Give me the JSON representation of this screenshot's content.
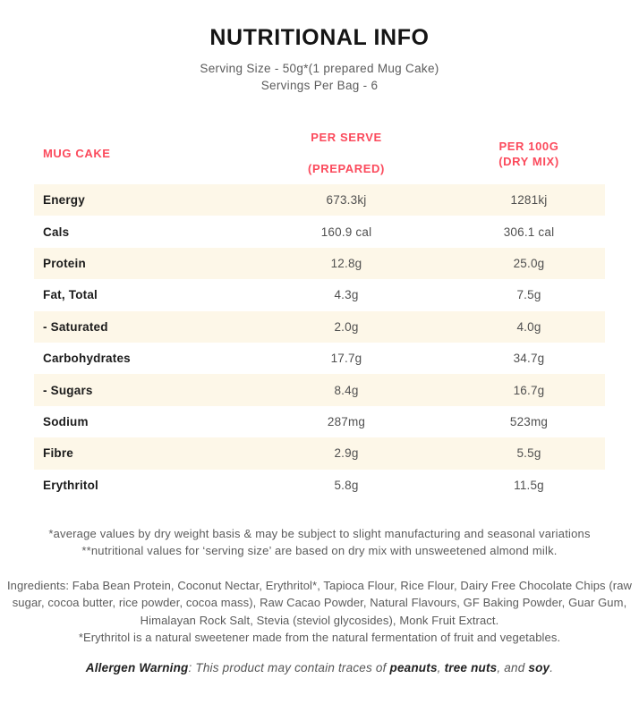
{
  "header": {
    "title": "NUTRITIONAL INFO",
    "serving_size": "Serving Size - 50g*(1 prepared Mug Cake)",
    "servings_per_bag": "Servings Per Bag - 6"
  },
  "table": {
    "header": {
      "product": "MUG CAKE",
      "per_serve_line1": "PER SERVE",
      "per_serve_line2": "(PREPARED)",
      "per_100g_line1": "PER 100G",
      "per_100g_line2": "(DRY MIX)"
    },
    "rows": [
      {
        "label": "Energy",
        "per_serve": "673.3kj",
        "per_100g": "1281kj"
      },
      {
        "label": "Cals",
        "per_serve": "160.9 cal",
        "per_100g": "306.1 cal"
      },
      {
        "label": "Protein",
        "per_serve": "12.8g",
        "per_100g": "25.0g"
      },
      {
        "label": "Fat, Total",
        "per_serve": "4.3g",
        "per_100g": "7.5g"
      },
      {
        "label": "- Saturated",
        "per_serve": "2.0g",
        "per_100g": "4.0g"
      },
      {
        "label": "Carbohydrates",
        "per_serve": "17.7g",
        "per_100g": "34.7g"
      },
      {
        "label": "- Sugars",
        "per_serve": "8.4g",
        "per_100g": "16.7g"
      },
      {
        "label": "Sodium",
        "per_serve": "287mg",
        "per_100g": "523mg"
      },
      {
        "label": "Fibre",
        "per_serve": "2.9g",
        "per_100g": "5.5g"
      },
      {
        "label": "Erythritol",
        "per_serve": "5.8g",
        "per_100g": "11.5g"
      }
    ]
  },
  "footnotes": {
    "line1": "*average values by dry weight basis & may be subject to slight manufacturing and seasonal variations",
    "line2": "**nutritional values for ‘serving size’ are based on dry mix with unsweetened almond milk."
  },
  "ingredients": {
    "text": "Ingredients: Faba Bean Protein, Coconut Nectar, Erythritol*, Tapioca Flour, Rice Flour, Dairy Free Chocolate Chips (raw sugar, cocoa butter, rice powder, cocoa mass), Raw Cacao Powder, Natural Flavours, GF Baking Powder, Guar Gum, Himalayan Rock Salt, Stevia (steviol glycosides), Monk Fruit Extract.",
    "erythritol_note": "*Erythritol is a natural sweetener made from the natural fermentation of fruit and vegetables."
  },
  "allergen": {
    "label": "Allergen Warning",
    "after_label": ": ",
    "text_before": "This product may contain traces of ",
    "item1": "peanuts",
    "sep1": ", ",
    "item2": "tree nuts",
    "sep2": ", and ",
    "item3": "soy",
    "end": "."
  },
  "colors": {
    "accent_red": "#fb4a5c",
    "row_cream": "#fdf7e8",
    "text_dark": "#1c1c1c",
    "text_gray": "#5b5b5b"
  }
}
